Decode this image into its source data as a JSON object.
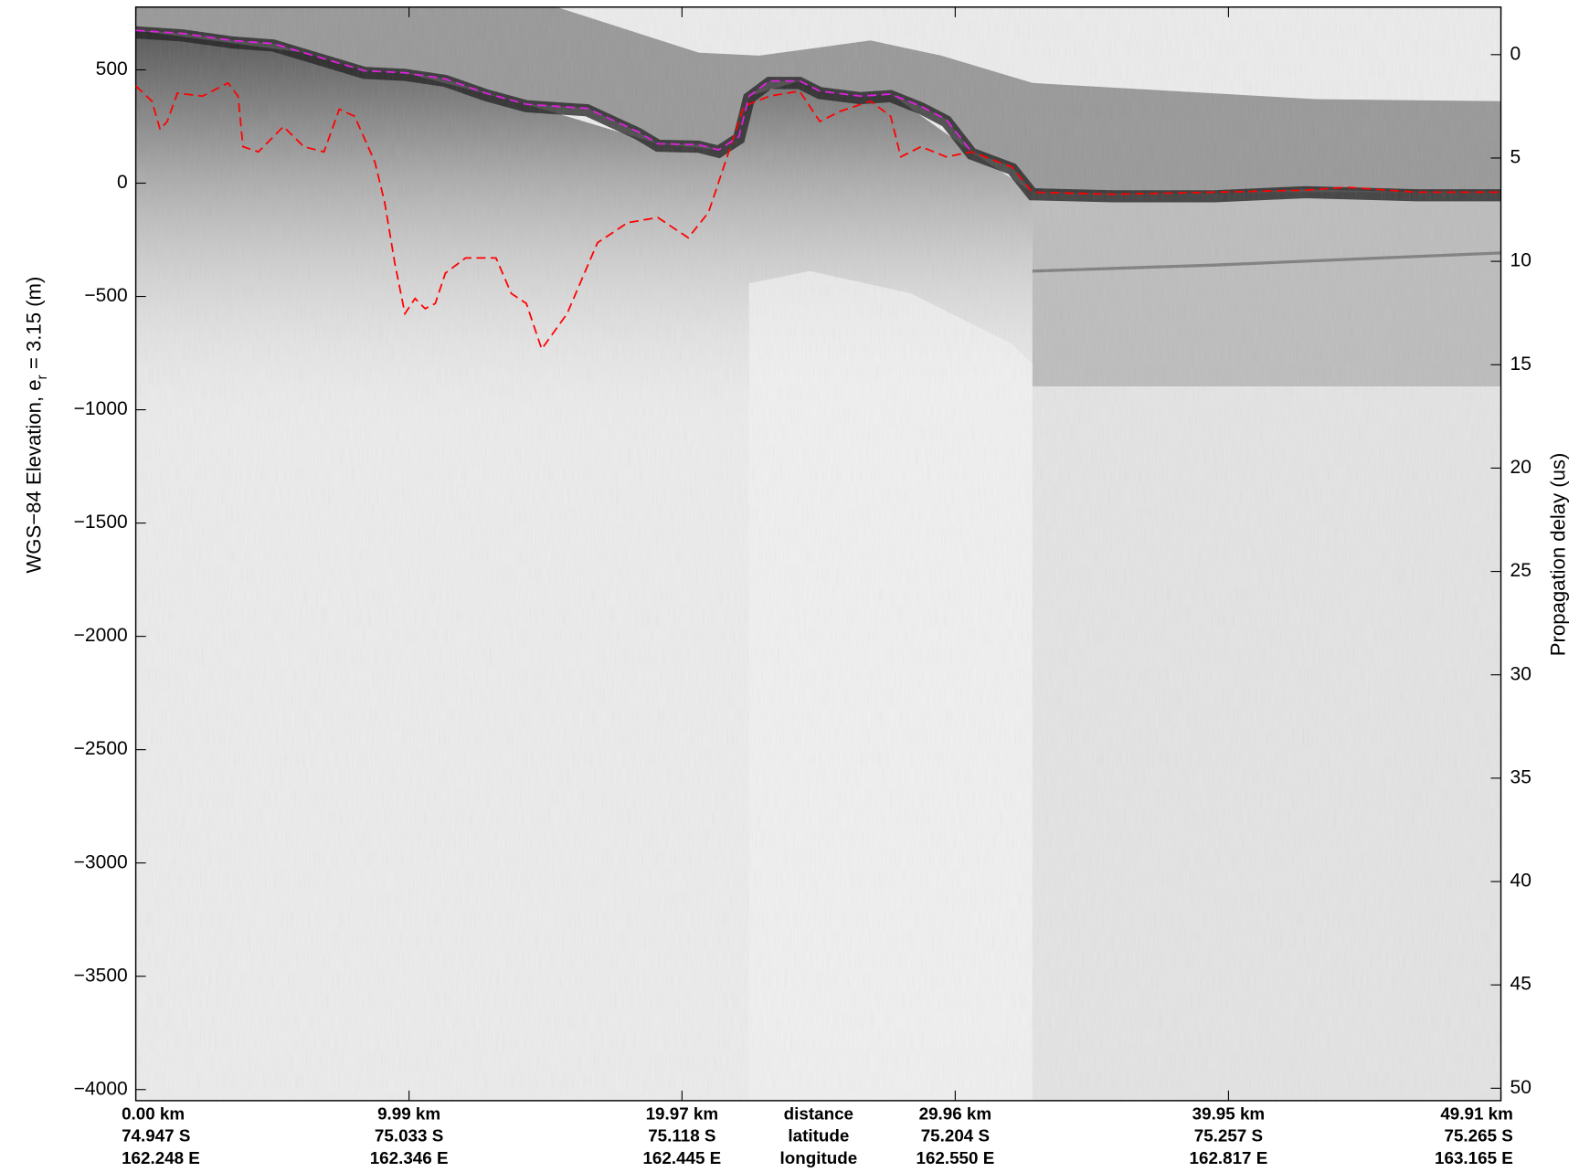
{
  "chart_data": {
    "type": "line",
    "ylabel": {
      "main": "WGS−84 Elevation, e",
      "subscript": "r",
      "suffix": " = 3.15 (m)"
    },
    "y2label": "Propagation delay (us)",
    "xlim": [
      0,
      49.91
    ],
    "xticks": [
      {
        "value": 0,
        "label": "0.00 km"
      },
      {
        "value": 9.99,
        "label": "9.99 km"
      },
      {
        "value": 19.97,
        "label": "19.97 km"
      },
      {
        "value": 29.96,
        "label": "29.96 km"
      },
      {
        "value": 39.95,
        "label": "39.95 km"
      },
      {
        "value": 49.91,
        "label": "49.91 km"
      }
    ],
    "xtick_latitudes": [
      "74.947 S",
      "75.033 S",
      "75.118 S",
      "75.204 S",
      "75.257 S",
      "75.265 S"
    ],
    "xtick_longitudes": [
      "162.248 E",
      "162.346 E",
      "162.445 E",
      "162.550 E",
      "162.817 E",
      "163.165 E"
    ],
    "x_row_labels": [
      "distance",
      "latitude",
      "longitude"
    ],
    "ylim": [
      -4049,
      777
    ],
    "yticks": [
      {
        "value": 500,
        "label": "500"
      },
      {
        "value": 0,
        "label": "0"
      },
      {
        "value": -500,
        "label": "−500"
      },
      {
        "value": -1000,
        "label": "−1000"
      },
      {
        "value": -1500,
        "label": "−1500"
      },
      {
        "value": -2000,
        "label": "−2000"
      },
      {
        "value": -2500,
        "label": "−2500"
      },
      {
        "value": -3000,
        "label": "−3000"
      },
      {
        "value": -3500,
        "label": "−3500"
      },
      {
        "value": -4000,
        "label": "−4000"
      }
    ],
    "y2lim": [
      50.6,
      -2.3
    ],
    "y2ticks": [
      0,
      5,
      10,
      15,
      20,
      25,
      30,
      35,
      40,
      45,
      50
    ],
    "series": [
      {
        "color": "#e020e0",
        "x": [
          0,
          1.7,
          3.55,
          5.03,
          6.14,
          8.36,
          9.84,
          11.32,
          12.8,
          14.28,
          16.5,
          18.35,
          19.09,
          20.57,
          21.31,
          22.05,
          22.42,
          23.16,
          24.27,
          25.01,
          26.49,
          27.6,
          28.71,
          29.63,
          30.56
        ],
        "values": [
          674,
          661,
          629,
          616,
          576,
          496,
          487,
          460,
          397,
          348,
          330,
          228,
          174,
          170,
          147,
          205,
          384,
          451,
          451,
          406,
          384,
          393,
          339,
          281,
          138
        ]
      },
      {
        "color": "#ff0000",
        "x": [
          0,
          0.59,
          0.89,
          1.15,
          1.52,
          2.44,
          3.37,
          3.74,
          3.92,
          4.48,
          5.4,
          6.14,
          6.88,
          7.44,
          8.0,
          8.74,
          9.1,
          9.47,
          9.84,
          10.21,
          10.58,
          10.95,
          11.32,
          12.06,
          13.17,
          13.73,
          14.28,
          14.84,
          15.77,
          16.88,
          17.99,
          19.09,
          20.2,
          20.94,
          21.68,
          22.23,
          23.16,
          24.27,
          25.01,
          25.75,
          26.86,
          27.6,
          27.97,
          28.71,
          29.63,
          30.56,
          32.04,
          32.78,
          35.74,
          39.44,
          42.77,
          44.25,
          46.84,
          49.91
        ],
        "values": [
          429,
          362,
          237,
          272,
          397,
          384,
          442,
          384,
          161,
          138,
          250,
          161,
          138,
          326,
          295,
          94,
          -85,
          -353,
          -576,
          -509,
          -554,
          -531,
          -397,
          -330,
          -330,
          -487,
          -531,
          -732,
          -576,
          -263,
          -174,
          -152,
          -241,
          -129,
          138,
          339,
          384,
          406,
          272,
          317,
          362,
          295,
          116,
          161,
          116,
          138,
          71,
          -40,
          -49,
          -40,
          -31,
          -18,
          -40,
          -40
        ]
      }
    ]
  }
}
